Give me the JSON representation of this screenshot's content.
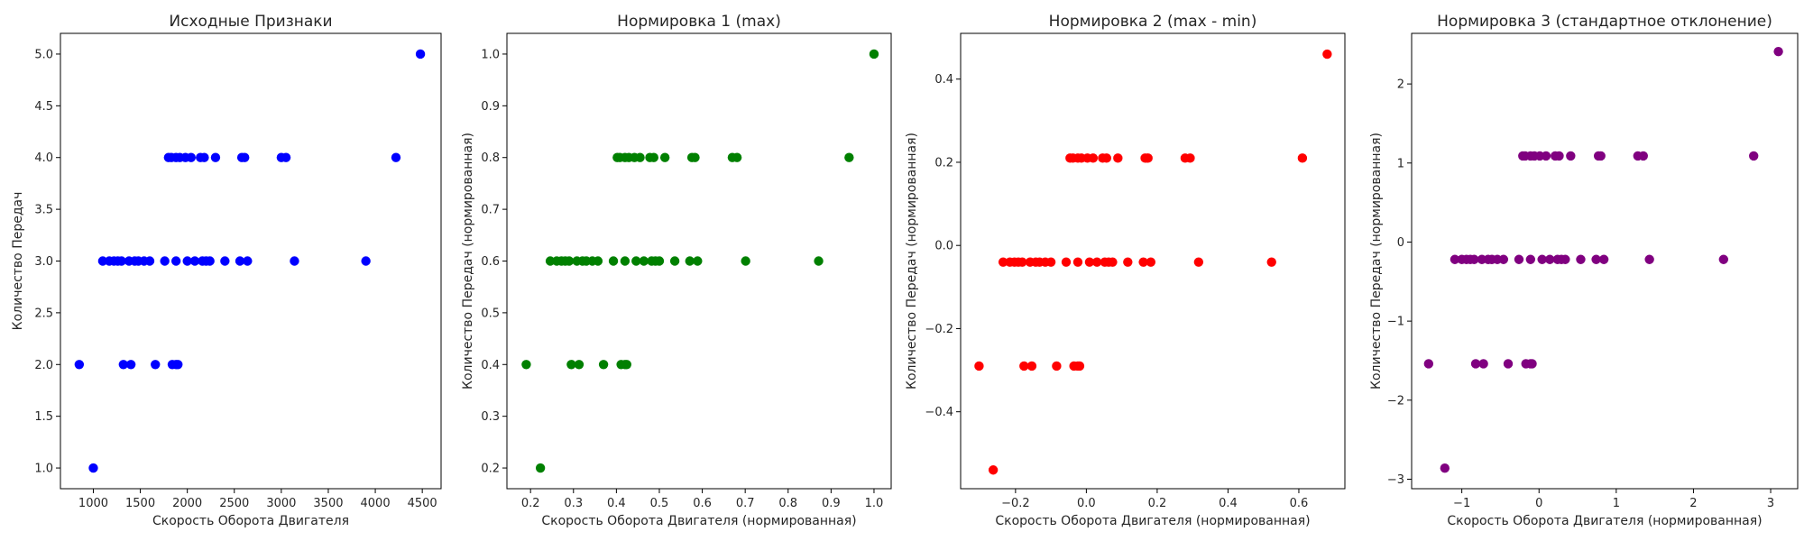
{
  "chart_data": [
    {
      "type": "scatter",
      "title": "Исходные Признаки",
      "xlabel": "Скорость Оборота Двигателя",
      "ylabel": "Количество Передач",
      "color": "#0000ff",
      "xlim": [
        650,
        4700
      ],
      "ylim": [
        0.8,
        5.2
      ],
      "xticks": [
        1000,
        1500,
        2000,
        2500,
        3000,
        3500,
        4000,
        4500
      ],
      "xtick_labels": [
        "1000",
        "1500",
        "2000",
        "2500",
        "3000",
        "3500",
        "4000",
        "4500"
      ],
      "yticks": [
        1.0,
        1.5,
        2.0,
        2.5,
        3.0,
        3.5,
        4.0,
        4.5,
        5.0
      ],
      "ytick_labels": [
        "1.0",
        "1.5",
        "2.0",
        "2.5",
        "3.0",
        "3.5",
        "4.0",
        "4.5",
        "5.0"
      ],
      "grid": false,
      "x": [
        1000,
        850,
        1320,
        1400,
        1660,
        1840,
        1880,
        1900,
        1100,
        1170,
        1220,
        1260,
        1300,
        1380,
        1440,
        1480,
        1540,
        1600,
        1760,
        1880,
        2000,
        2080,
        2160,
        2200,
        2240,
        2400,
        2560,
        2640,
        3140,
        3900,
        1800,
        1830,
        1880,
        1920,
        1980,
        2040,
        2140,
        2180,
        2300,
        2580,
        2610,
        3000,
        3050,
        4220,
        4480
      ],
      "y": [
        1,
        2,
        2,
        2,
        2,
        2,
        2,
        2,
        3,
        3,
        3,
        3,
        3,
        3,
        3,
        3,
        3,
        3,
        3,
        3,
        3,
        3,
        3,
        3,
        3,
        3,
        3,
        3,
        3,
        3,
        4,
        4,
        4,
        4,
        4,
        4,
        4,
        4,
        4,
        4,
        4,
        4,
        4,
        4,
        5
      ]
    },
    {
      "type": "scatter",
      "title": "Нормировка 1 (max)",
      "xlabel": "Скорость Оборота Двигателя (нормированная)",
      "ylabel": "Количество Передач (нормированная)",
      "color": "#008000",
      "xlim": [
        0.145,
        1.04
      ],
      "ylim": [
        0.16,
        1.04
      ],
      "xticks": [
        0.2,
        0.3,
        0.4,
        0.5,
        0.6,
        0.7,
        0.8,
        0.9,
        1.0
      ],
      "xtick_labels": [
        "0.2",
        "0.3",
        "0.4",
        "0.5",
        "0.6",
        "0.7",
        "0.8",
        "0.9",
        "1.0"
      ],
      "yticks": [
        0.2,
        0.3,
        0.4,
        0.5,
        0.6,
        0.7,
        0.8,
        0.9,
        1.0
      ],
      "ytick_labels": [
        "0.2",
        "0.3",
        "0.4",
        "0.5",
        "0.6",
        "0.7",
        "0.8",
        "0.9",
        "1.0"
      ],
      "grid": false,
      "x": [
        0.223,
        0.19,
        0.295,
        0.313,
        0.37,
        0.411,
        0.42,
        0.424,
        0.246,
        0.261,
        0.272,
        0.281,
        0.29,
        0.308,
        0.321,
        0.33,
        0.344,
        0.357,
        0.393,
        0.42,
        0.446,
        0.464,
        0.482,
        0.491,
        0.5,
        0.536,
        0.571,
        0.589,
        0.701,
        0.871,
        0.402,
        0.408,
        0.42,
        0.429,
        0.442,
        0.455,
        0.478,
        0.487,
        0.513,
        0.576,
        0.583,
        0.67,
        0.681,
        0.942,
        1.0
      ],
      "y": [
        0.2,
        0.4,
        0.4,
        0.4,
        0.4,
        0.4,
        0.4,
        0.4,
        0.6,
        0.6,
        0.6,
        0.6,
        0.6,
        0.6,
        0.6,
        0.6,
        0.6,
        0.6,
        0.6,
        0.6,
        0.6,
        0.6,
        0.6,
        0.6,
        0.6,
        0.6,
        0.6,
        0.6,
        0.6,
        0.6,
        0.8,
        0.8,
        0.8,
        0.8,
        0.8,
        0.8,
        0.8,
        0.8,
        0.8,
        0.8,
        0.8,
        0.8,
        0.8,
        0.8,
        1.0
      ]
    },
    {
      "type": "scatter",
      "title": "Нормировка 2 (max - min)",
      "xlabel": "Скорость Оборота Двигателя (нормированная)",
      "ylabel": "Количество Передач (нормированная)",
      "color": "#ff0000",
      "xlim": [
        -0.355,
        0.73
      ],
      "ylim": [
        -0.585,
        0.51
      ],
      "xticks": [
        -0.2,
        0.0,
        0.2,
        0.4,
        0.6
      ],
      "xtick_labels": [
        "−0.2",
        "0.0",
        "0.2",
        "0.4",
        "0.6"
      ],
      "yticks": [
        -0.4,
        -0.2,
        0.0,
        0.2,
        0.4
      ],
      "ytick_labels": [
        "−0.4",
        "−0.2",
        "0.0",
        "0.2",
        "0.4"
      ],
      "grid": false,
      "x": [
        -0.263,
        -0.303,
        -0.176,
        -0.154,
        -0.084,
        -0.035,
        -0.024,
        -0.019,
        -0.235,
        -0.216,
        -0.203,
        -0.192,
        -0.181,
        -0.159,
        -0.143,
        -0.132,
        -0.116,
        -0.1,
        -0.057,
        -0.024,
        0.009,
        0.03,
        0.052,
        0.063,
        0.074,
        0.117,
        0.161,
        0.182,
        0.317,
        0.523,
        -0.046,
        -0.038,
        -0.024,
        -0.014,
        0.003,
        0.019,
        0.046,
        0.057,
        0.089,
        0.166,
        0.174,
        0.279,
        0.293,
        0.61,
        0.68
      ],
      "y": [
        -0.54,
        -0.29,
        -0.29,
        -0.29,
        -0.29,
        -0.29,
        -0.29,
        -0.29,
        -0.04,
        -0.04,
        -0.04,
        -0.04,
        -0.04,
        -0.04,
        -0.04,
        -0.04,
        -0.04,
        -0.04,
        -0.04,
        -0.04,
        -0.04,
        -0.04,
        -0.04,
        -0.04,
        -0.04,
        -0.04,
        -0.04,
        -0.04,
        -0.04,
        -0.04,
        0.21,
        0.21,
        0.21,
        0.21,
        0.21,
        0.21,
        0.21,
        0.21,
        0.21,
        0.21,
        0.21,
        0.21,
        0.21,
        0.21,
        0.46
      ]
    },
    {
      "type": "scatter",
      "title": "Нормировка 3 (стандартное отклонение)",
      "xlabel": "Скорость Оборота Двигателя (нормированная)",
      "ylabel": "Количество Передач (нормированная)",
      "color": "#800080",
      "xlim": [
        -1.65,
        3.35
      ],
      "ylim": [
        -3.12,
        2.64
      ],
      "xticks": [
        -1,
        0,
        1,
        2,
        3
      ],
      "xtick_labels": [
        "−1",
        "0",
        "1",
        "2",
        "3"
      ],
      "yticks": [
        -3,
        -2,
        -1,
        0,
        1,
        2
      ],
      "ytick_labels": [
        "−3",
        "−2",
        "−1",
        "0",
        "1",
        "2"
      ],
      "grid": false,
      "x": [
        -1.22,
        -1.43,
        -0.82,
        -0.72,
        -0.4,
        -0.17,
        -0.11,
        -0.09,
        -1.09,
        -1.0,
        -0.94,
        -0.89,
        -0.84,
        -0.74,
        -0.66,
        -0.61,
        -0.54,
        -0.46,
        -0.26,
        -0.11,
        0.04,
        0.14,
        0.24,
        0.29,
        0.34,
        0.54,
        0.74,
        0.84,
        1.43,
        2.39,
        -0.21,
        -0.18,
        -0.11,
        -0.06,
        0.01,
        0.09,
        0.21,
        0.26,
        0.41,
        0.77,
        0.8,
        1.28,
        1.35,
        2.78,
        3.1
      ],
      "y": [
        -2.86,
        -1.54,
        -1.54,
        -1.54,
        -1.54,
        -1.54,
        -1.54,
        -1.54,
        -0.22,
        -0.22,
        -0.22,
        -0.22,
        -0.22,
        -0.22,
        -0.22,
        -0.22,
        -0.22,
        -0.22,
        -0.22,
        -0.22,
        -0.22,
        -0.22,
        -0.22,
        -0.22,
        -0.22,
        -0.22,
        -0.22,
        -0.22,
        -0.22,
        -0.22,
        1.09,
        1.09,
        1.09,
        1.09,
        1.09,
        1.09,
        1.09,
        1.09,
        1.09,
        1.09,
        1.09,
        1.09,
        1.09,
        1.09,
        2.41
      ]
    }
  ]
}
